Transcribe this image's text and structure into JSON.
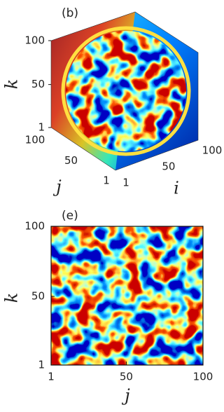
{
  "panels": [
    {
      "label": "(b)",
      "axes": [
        {
          "label": "k",
          "lim": [
            1,
            100
          ],
          "ticks": [
            1,
            50,
            100
          ]
        },
        {
          "label": "j",
          "lim": [
            1,
            100
          ],
          "ticks": [
            1,
            50,
            100
          ]
        },
        {
          "label": "i",
          "lim": [
            1,
            100
          ],
          "ticks": [
            1,
            50,
            100
          ]
        }
      ]
    },
    {
      "label": "(e)",
      "axes": [
        {
          "label": "k",
          "lim": [
            1,
            100
          ],
          "ticks": [
            1,
            50,
            100
          ]
        },
        {
          "label": "j",
          "lim": [
            1,
            100
          ],
          "ticks": [
            1,
            50,
            100
          ]
        }
      ]
    }
  ]
}
